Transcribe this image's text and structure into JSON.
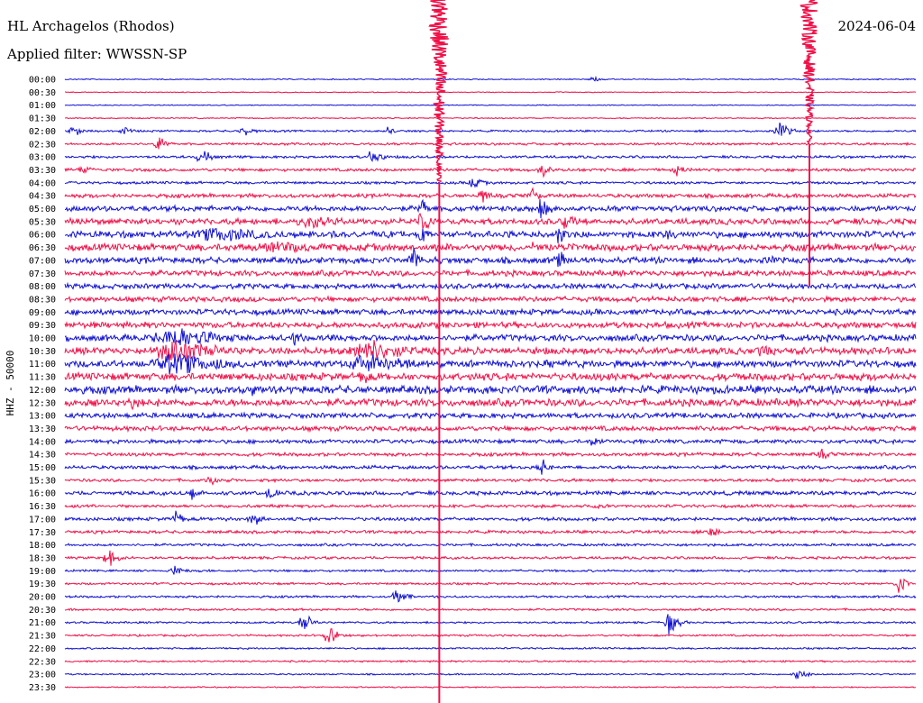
{
  "header": {
    "station": "HL Archagelos (Rhodos)",
    "date": "2024-06-04",
    "filter": "Applied filter: WWSSN-SP"
  },
  "colors": {
    "background": "#ffffff",
    "trace_a": "#1010d0",
    "trace_b": "#f01048",
    "text": "#000000"
  },
  "chart_data": {
    "type": "line",
    "subtype": "helicorder",
    "title": "HL Archagelos (Rhodos)",
    "subtitle": "Applied filter: WWSSN-SP",
    "date": "2024-06-04",
    "ylabel": "HHZ - 50000",
    "xlabel": "",
    "legend": "none",
    "grid": false,
    "row_minutes": 30,
    "y_ticks": [
      "00:00",
      "00:30",
      "01:00",
      "01:30",
      "02:00",
      "02:30",
      "03:00",
      "03:30",
      "04:00",
      "04:30",
      "05:00",
      "05:30",
      "06:00",
      "06:30",
      "07:00",
      "07:30",
      "08:00",
      "08:30",
      "09:00",
      "09:30",
      "10:00",
      "10:30",
      "11:00",
      "11:30",
      "12:00",
      "12:30",
      "13:00",
      "13:30",
      "14:00",
      "14:30",
      "15:00",
      "15:30",
      "16:00",
      "16:30",
      "17:00",
      "17:30",
      "18:00",
      "18:30",
      "19:00",
      "19:30",
      "20:00",
      "20:30",
      "21:00",
      "21:30",
      "22:00",
      "22:30",
      "23:00",
      "23:30"
    ],
    "row_colors": "alternating blue / red",
    "noise_level": [
      0.5,
      0.4,
      0.4,
      0.5,
      0.9,
      1.1,
      1.2,
      1.4,
      1.2,
      1.8,
      2.5,
      2.8,
      3.0,
      3.2,
      2.8,
      2.6,
      2.4,
      2.4,
      2.6,
      2.8,
      3.0,
      3.2,
      3.2,
      3.4,
      3.6,
      3.4,
      2.4,
      2.2,
      1.8,
      1.6,
      1.6,
      1.4,
      1.8,
      1.4,
      1.6,
      1.4,
      1.2,
      1.2,
      1.0,
      1.0,
      1.0,
      1.0,
      0.9,
      0.9,
      0.8,
      0.8,
      0.7,
      0.6
    ],
    "events": [
      {
        "row": 0,
        "t": 0.62,
        "amp": 4
      },
      {
        "row": 4,
        "t": 0.01,
        "amp": 8
      },
      {
        "row": 4,
        "t": 0.07,
        "amp": 6
      },
      {
        "row": 4,
        "t": 0.21,
        "amp": 8
      },
      {
        "row": 4,
        "t": 0.38,
        "amp": 6
      },
      {
        "row": 4,
        "t": 0.84,
        "amp": 14
      },
      {
        "row": 5,
        "t": 0.11,
        "amp": 10
      },
      {
        "row": 6,
        "t": 0.16,
        "amp": 12
      },
      {
        "row": 6,
        "t": 0.36,
        "amp": 14
      },
      {
        "row": 7,
        "t": 0.02,
        "amp": 8
      },
      {
        "row": 7,
        "t": 0.56,
        "amp": 10
      },
      {
        "row": 7,
        "t": 0.72,
        "amp": 8
      },
      {
        "row": 8,
        "t": 0.48,
        "amp": 10
      },
      {
        "row": 9,
        "t": 0.49,
        "amp": 10
      },
      {
        "row": 9,
        "t": 0.55,
        "amp": 12
      },
      {
        "row": 10,
        "t": 0.42,
        "amp": 14
      },
      {
        "row": 10,
        "t": 0.56,
        "amp": 16
      },
      {
        "row": 11,
        "t": 0.42,
        "amp": 16
      },
      {
        "row": 11,
        "t": 0.59,
        "amp": 14
      },
      {
        "row": 11,
        "t": 0.29,
        "amp": 10,
        "width": 0.03
      },
      {
        "row": 12,
        "t": 0.18,
        "amp": 10,
        "width": 0.06
      },
      {
        "row": 12,
        "t": 0.42,
        "amp": 14
      },
      {
        "row": 12,
        "t": 0.58,
        "amp": 16
      },
      {
        "row": 12,
        "t": 0.71,
        "amp": 10
      },
      {
        "row": 13,
        "t": 0.25,
        "amp": 8,
        "width": 0.06
      },
      {
        "row": 13,
        "t": 0.55,
        "amp": 8
      },
      {
        "row": 14,
        "t": 0.41,
        "amp": 16
      },
      {
        "row": 14,
        "t": 0.58,
        "amp": 14
      },
      {
        "row": 14,
        "t": 0.83,
        "amp": 8
      },
      {
        "row": 20,
        "t": 0.13,
        "amp": 16,
        "width": 0.04
      },
      {
        "row": 20,
        "t": 0.27,
        "amp": 12
      },
      {
        "row": 21,
        "t": 0.13,
        "amp": 18,
        "width": 0.04
      },
      {
        "row": 21,
        "t": 0.36,
        "amp": 14,
        "width": 0.04
      },
      {
        "row": 21,
        "t": 0.82,
        "amp": 12
      },
      {
        "row": 22,
        "t": 0.13,
        "amp": 16,
        "width": 0.04
      },
      {
        "row": 22,
        "t": 0.36,
        "amp": 16,
        "width": 0.04
      },
      {
        "row": 22,
        "t": 0.18,
        "amp": 10
      },
      {
        "row": 23,
        "t": 0.35,
        "amp": 12
      },
      {
        "row": 24,
        "t": 0.22,
        "amp": 10
      },
      {
        "row": 25,
        "t": 0.08,
        "amp": 10
      },
      {
        "row": 28,
        "t": 0.62,
        "amp": 8
      },
      {
        "row": 29,
        "t": 0.89,
        "amp": 8
      },
      {
        "row": 30,
        "t": 0.56,
        "amp": 12
      },
      {
        "row": 31,
        "t": 0.17,
        "amp": 8
      },
      {
        "row": 32,
        "t": 0.15,
        "amp": 10
      },
      {
        "row": 32,
        "t": 0.24,
        "amp": 10
      },
      {
        "row": 33,
        "t": 0.62,
        "amp": 6
      },
      {
        "row": 34,
        "t": 0.13,
        "amp": 10
      },
      {
        "row": 34,
        "t": 0.22,
        "amp": 12
      },
      {
        "row": 35,
        "t": 0.76,
        "amp": 8
      },
      {
        "row": 37,
        "t": 0.05,
        "amp": 14
      },
      {
        "row": 38,
        "t": 0.13,
        "amp": 8
      },
      {
        "row": 39,
        "t": 0.98,
        "amp": 12
      },
      {
        "row": 40,
        "t": 0.39,
        "amp": 14
      },
      {
        "row": 42,
        "t": 0.71,
        "amp": 16
      },
      {
        "row": 42,
        "t": 0.28,
        "amp": 14
      },
      {
        "row": 43,
        "t": 0.31,
        "amp": 14
      },
      {
        "row": 46,
        "t": 0.86,
        "amp": 10
      }
    ],
    "large_events": [
      {
        "row_start": 0,
        "t": 0.44,
        "amp": 90,
        "decay_rows": 8
      },
      {
        "row_start": 0,
        "t": 0.875,
        "amp": 70,
        "decay_rows": 5
      }
    ]
  }
}
